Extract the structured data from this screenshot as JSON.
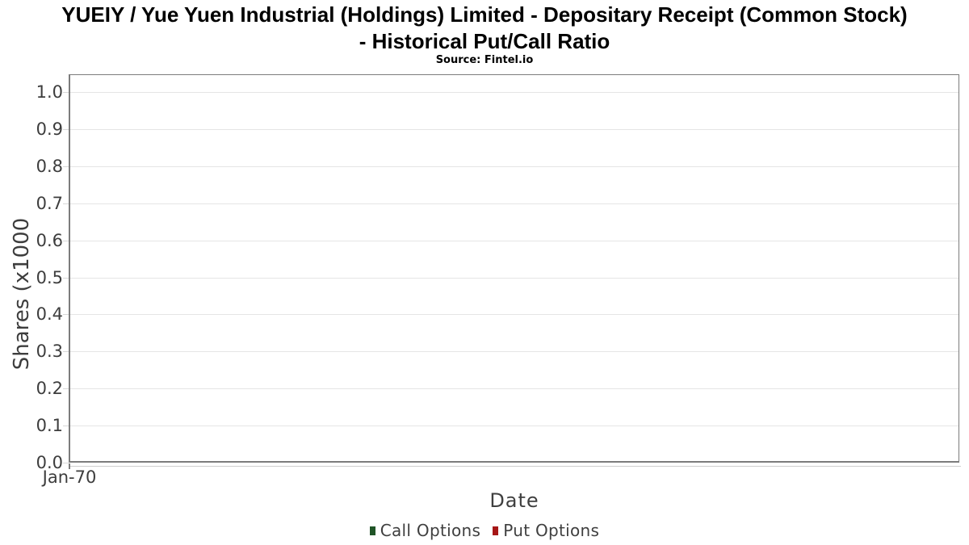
{
  "header": {
    "title_line1": "YUEIY / Yue Yuen Industrial (Holdings) Limited - Depositary Receipt (Common Stock)",
    "title_line2": "- Historical Put/Call Ratio",
    "subtitle": "Source: Fintel.io"
  },
  "chart_data": {
    "type": "line",
    "title": "YUEIY / Yue Yuen Industrial (Holdings) Limited - Depositary Receipt (Common Stock) - Historical Put/Call Ratio",
    "subtitle": "Source: Fintel.io",
    "xlabel": "Date",
    "ylabel": "Shares (x1000",
    "xticks": [
      "Jan-70"
    ],
    "yticks": [
      "0.0",
      "0.1",
      "0.2",
      "0.3",
      "0.4",
      "0.5",
      "0.6",
      "0.7",
      "0.8",
      "0.9",
      "1.0"
    ],
    "ylim": [
      0.0,
      1.05
    ],
    "grid": "horizontal",
    "legend_position": "bottom",
    "series": [
      {
        "name": "Call Options",
        "color": "#205427",
        "x": [],
        "values": []
      },
      {
        "name": "Put Options",
        "color": "#a61616",
        "x": [],
        "values": []
      }
    ]
  },
  "legend": {
    "items": [
      {
        "label": "Call Options",
        "color": "#205427"
      },
      {
        "label": "Put Options",
        "color": "#a61616"
      }
    ]
  },
  "colors": {
    "plot_border": "#7c7c7c",
    "gridline": "#e5e5e5",
    "axis_text": "#3d3d3d",
    "call_options": "#205427",
    "put_options": "#a61616"
  }
}
